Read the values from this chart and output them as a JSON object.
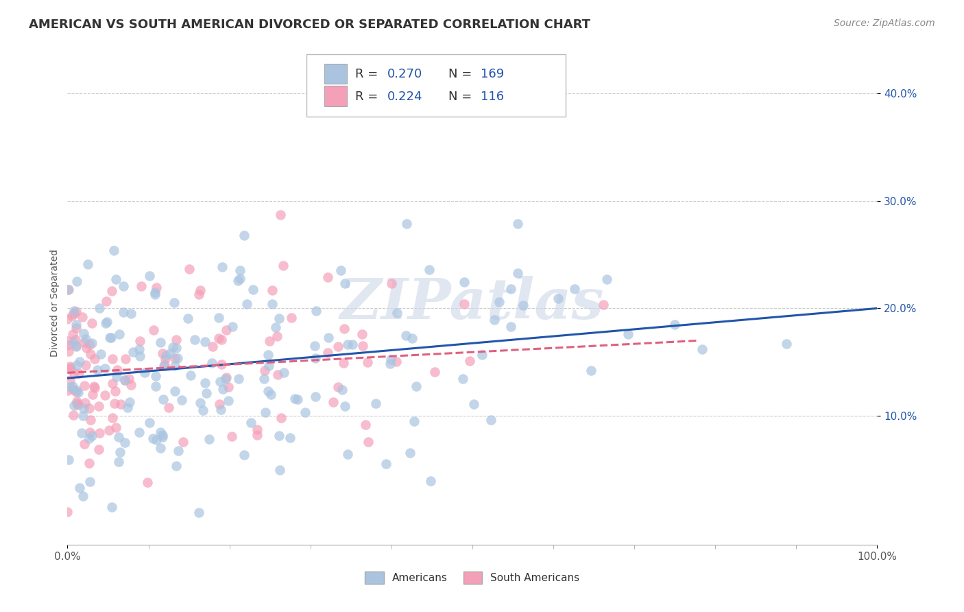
{
  "title": "AMERICAN VS SOUTH AMERICAN DIVORCED OR SEPARATED CORRELATION CHART",
  "source_text": "Source: ZipAtlas.com",
  "ylabel": "Divorced or Separated",
  "xlim": [
    0,
    1
  ],
  "ylim": [
    -0.02,
    0.43
  ],
  "yticks": [
    0.1,
    0.2,
    0.3,
    0.4
  ],
  "ytick_labels": [
    "10.0%",
    "20.0%",
    "30.0%",
    "40.0%"
  ],
  "xtick_labels": [
    "0.0%",
    "100.0%"
  ],
  "xtick_vals": [
    0.0,
    1.0
  ],
  "american_color": "#aac4e0",
  "south_american_color": "#f4a0b8",
  "trend_american_color": "#2255aa",
  "trend_south_american_color": "#e06080",
  "background_color": "#ffffff",
  "watermark_color": "#ccd8e8",
  "watermark_text": "ZIPatlas",
  "legend_blue_color": "#2255aa",
  "legend_text_color": "#333333",
  "title_fontsize": 13,
  "axis_label_fontsize": 10,
  "tick_fontsize": 11,
  "legend_fontsize": 13,
  "source_fontsize": 10,
  "n_american": 169,
  "n_south": 116,
  "american_trend_x0": 0.0,
  "american_trend_y0": 0.135,
  "american_trend_x1": 1.0,
  "american_trend_y1": 0.2,
  "south_trend_x0": 0.0,
  "south_trend_y0": 0.14,
  "south_trend_x1": 0.78,
  "south_trend_y1": 0.17,
  "american_seed": 7,
  "south_seed": 13
}
